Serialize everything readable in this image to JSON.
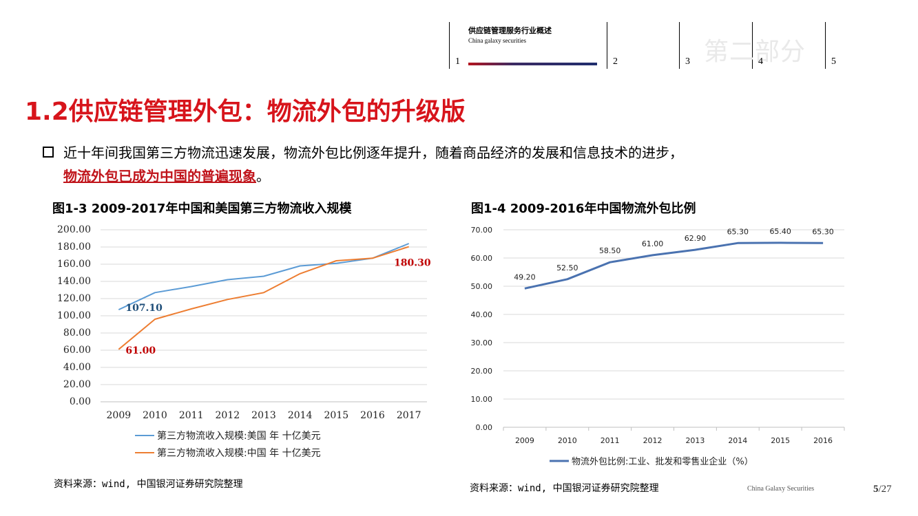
{
  "nav": {
    "section_title": "供应链管理服务行业概述",
    "section_subtitle": "China galaxy securities",
    "items": [
      "1",
      "2",
      "3",
      "4",
      "5"
    ],
    "ghost_text": "第二部分"
  },
  "page_title": "1.2供应链管理外包：物流外包的升级版",
  "bullet": {
    "line1": "近十年间我国第三方物流迅速发展，物流外包比例逐年提升，随着商品经济的发展和信息技术的进步，",
    "highlight": "物流外包已成为中国的普遍现象",
    "end": "。"
  },
  "chart_data": [
    {
      "type": "line",
      "title": "图1-3 2009-2017年中国和美国第三方物流收入规模",
      "categories": [
        "2009",
        "2010",
        "2011",
        "2012",
        "2013",
        "2014",
        "2015",
        "2016",
        "2017"
      ],
      "series": [
        {
          "name": "第三方物流收入规模:美国  年  十亿美元",
          "color": "#5b9bd5",
          "values": [
            107.1,
            127,
            134,
            142,
            146,
            158,
            161,
            167,
            184
          ]
        },
        {
          "name": "第三方物流收入规模:中国  年  十亿美元",
          "color": "#ed7d31",
          "values": [
            61.0,
            96,
            108,
            119,
            127,
            149,
            164,
            167,
            180.3
          ]
        }
      ],
      "ylim": [
        0,
        200
      ],
      "yticks": [
        "200.00",
        "180.00",
        "160.00",
        "140.00",
        "120.00",
        "100.00",
        "80.00",
        "60.00",
        "40.00",
        "20.00",
        "0.00"
      ],
      "annotations": [
        {
          "text": "107.10",
          "color": "#1f4e79"
        },
        {
          "text": "61.00",
          "color": "#c00000"
        },
        {
          "text": "180.30",
          "color": "#c00000"
        }
      ],
      "grid": true,
      "legend": "bottom"
    },
    {
      "type": "line",
      "title": "图1-4 2009-2016年中国物流外包比例",
      "categories": [
        "2009",
        "2010",
        "2011",
        "2012",
        "2013",
        "2014",
        "2015",
        "2016"
      ],
      "series": [
        {
          "name": "物流外包比例:工业、批发和零售业企业（%）",
          "color": "#4a72b0",
          "values": [
            49.2,
            52.5,
            58.5,
            61.0,
            62.9,
            65.3,
            65.4,
            65.3
          ]
        }
      ],
      "data_labels": [
        "49.20",
        "52.50",
        "58.50",
        "61.00",
        "62.90",
        "65.30",
        "65.40",
        "65.30"
      ],
      "ylim": [
        0,
        70
      ],
      "yticks": [
        "70.00",
        "60.00",
        "50.00",
        "40.00",
        "30.00",
        "20.00",
        "10.00",
        "0.00"
      ],
      "grid": true,
      "legend": "bottom"
    }
  ],
  "sources": [
    "资料来源：wind, 中国银河证券研究院整理",
    "资料来源：wind, 中国银河证券研究院整理"
  ],
  "footer": {
    "brand": "China Galaxy Securities",
    "page": "5",
    "total": "/27"
  }
}
